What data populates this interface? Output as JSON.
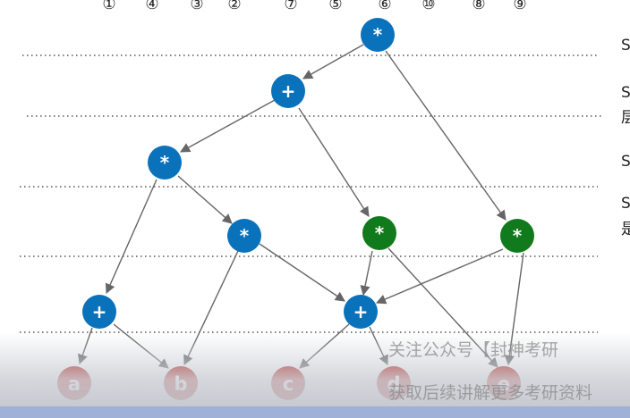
{
  "column_numbers": [
    "①",
    "④",
    "③",
    "②",
    "⑦",
    "⑤",
    "⑥",
    "⑩",
    "⑧",
    "⑨"
  ],
  "nodes": {
    "n6": {
      "label": "*",
      "color": "#0a72bb"
    },
    "n7": {
      "label": "+",
      "color": "#0a72bb"
    },
    "n1": {
      "label": "*",
      "color": "#0a72bb"
    },
    "n3": {
      "label": "*",
      "color": "#0a72bb"
    },
    "n2": {
      "label": "+",
      "color": "#0a72bb"
    },
    "n5": {
      "label": "+",
      "color": "#0a72bb"
    },
    "g1": {
      "label": "*",
      "color": "#117a1c"
    },
    "g2": {
      "label": "*",
      "color": "#117a1c"
    },
    "la": {
      "label": "a",
      "color": "#b0140f"
    },
    "lb": {
      "label": "b",
      "color": "#b0140f"
    },
    "lc": {
      "label": "c",
      "color": "#b0140f"
    },
    "ld": {
      "label": "d",
      "color": "#b0140f"
    },
    "le": {
      "label": "e",
      "color": "#b0140f"
    }
  },
  "side_chars": [
    "S",
    "S",
    "层",
    "S",
    "S",
    "是"
  ],
  "watermark": {
    "line1": "关注公众号【封神考研",
    "line2": "获取后续讲解更多考研资料"
  }
}
